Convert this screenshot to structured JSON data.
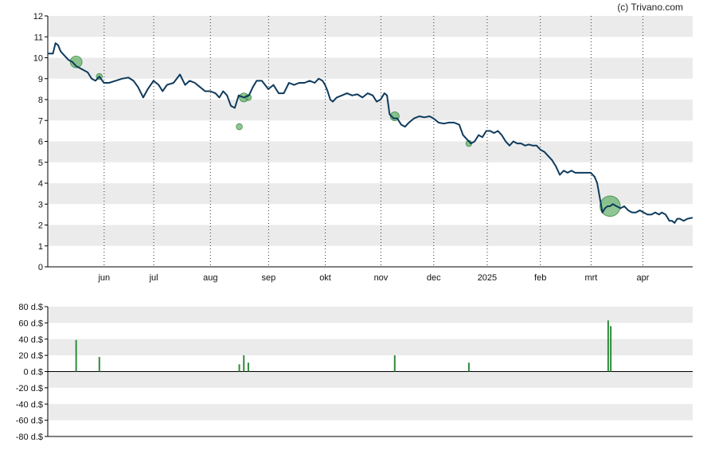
{
  "credit": "(c) Trivano.com",
  "colors": {
    "price_line": "#0e3a5c",
    "volume_bar": "#2e8b3a",
    "bubble_fill": "#5fae66",
    "band": "#ebebeb",
    "grid_dotted": "#333333",
    "axis": "#000000"
  },
  "chart_data": [
    {
      "type": "line",
      "title": "",
      "ylim": [
        0,
        12
      ],
      "y_ticks": [
        "0",
        "1",
        "2",
        "3",
        "4",
        "5",
        "6",
        "7",
        "8",
        "9",
        "10",
        "11",
        "12"
      ],
      "x_ticks": [
        {
          "label": "jun",
          "t": 0.0874
        },
        {
          "label": "jul",
          "t": 0.1643
        },
        {
          "label": "aug",
          "t": 0.2522
        },
        {
          "label": "sep",
          "t": 0.3424
        },
        {
          "label": "okt",
          "t": 0.4303
        },
        {
          "label": "nov",
          "t": 0.5166
        },
        {
          "label": "dec",
          "t": 0.5985
        },
        {
          "label": "2025",
          "t": 0.6814
        },
        {
          "label": "feb",
          "t": 0.7638
        },
        {
          "label": "mrt",
          "t": 0.8425
        },
        {
          "label": "apr",
          "t": 0.9228
        }
      ],
      "grid": "horizontal bands, dotted vertical month lines",
      "series": [
        {
          "values": [
            [
              0.0,
              10.2
            ],
            [
              0.008,
              10.2
            ],
            [
              0.012,
              10.7
            ],
            [
              0.016,
              10.6
            ],
            [
              0.02,
              10.3
            ],
            [
              0.026,
              10.1
            ],
            [
              0.032,
              9.9
            ],
            [
              0.038,
              9.8
            ],
            [
              0.044,
              9.6
            ],
            [
              0.05,
              9.5
            ],
            [
              0.056,
              9.4
            ],
            [
              0.062,
              9.3
            ],
            [
              0.068,
              9.0
            ],
            [
              0.074,
              8.9
            ],
            [
              0.08,
              9.1
            ],
            [
              0.087,
              8.8
            ],
            [
              0.095,
              8.8
            ],
            [
              0.105,
              8.9
            ],
            [
              0.115,
              9.0
            ],
            [
              0.125,
              9.05
            ],
            [
              0.133,
              8.9
            ],
            [
              0.14,
              8.6
            ],
            [
              0.148,
              8.1
            ],
            [
              0.155,
              8.5
            ],
            [
              0.164,
              8.9
            ],
            [
              0.172,
              8.7
            ],
            [
              0.178,
              8.4
            ],
            [
              0.185,
              8.7
            ],
            [
              0.195,
              8.8
            ],
            [
              0.205,
              9.2
            ],
            [
              0.213,
              8.7
            ],
            [
              0.22,
              8.9
            ],
            [
              0.228,
              8.8
            ],
            [
              0.236,
              8.6
            ],
            [
              0.244,
              8.4
            ],
            [
              0.252,
              8.4
            ],
            [
              0.26,
              8.3
            ],
            [
              0.266,
              8.1
            ],
            [
              0.272,
              8.4
            ],
            [
              0.278,
              8.2
            ],
            [
              0.284,
              7.7
            ],
            [
              0.29,
              7.6
            ],
            [
              0.296,
              8.2
            ],
            [
              0.304,
              8.1
            ],
            [
              0.312,
              8.2
            ],
            [
              0.318,
              8.6
            ],
            [
              0.324,
              8.9
            ],
            [
              0.332,
              8.9
            ],
            [
              0.342,
              8.5
            ],
            [
              0.35,
              8.7
            ],
            [
              0.358,
              8.3
            ],
            [
              0.366,
              8.3
            ],
            [
              0.374,
              8.8
            ],
            [
              0.382,
              8.7
            ],
            [
              0.39,
              8.8
            ],
            [
              0.398,
              8.8
            ],
            [
              0.406,
              8.9
            ],
            [
              0.414,
              8.8
            ],
            [
              0.42,
              9.0
            ],
            [
              0.426,
              8.9
            ],
            [
              0.43,
              8.7
            ],
            [
              0.434,
              8.4
            ],
            [
              0.438,
              8.0
            ],
            [
              0.442,
              7.9
            ],
            [
              0.448,
              8.1
            ],
            [
              0.456,
              8.2
            ],
            [
              0.464,
              8.3
            ],
            [
              0.472,
              8.2
            ],
            [
              0.48,
              8.25
            ],
            [
              0.488,
              8.1
            ],
            [
              0.496,
              8.3
            ],
            [
              0.504,
              8.2
            ],
            [
              0.51,
              7.9
            ],
            [
              0.516,
              8.0
            ],
            [
              0.522,
              8.3
            ],
            [
              0.526,
              8.2
            ],
            [
              0.53,
              7.3
            ],
            [
              0.536,
              7.1
            ],
            [
              0.542,
              7.1
            ],
            [
              0.548,
              6.8
            ],
            [
              0.554,
              6.7
            ],
            [
              0.56,
              6.9
            ],
            [
              0.568,
              7.1
            ],
            [
              0.576,
              7.2
            ],
            [
              0.584,
              7.15
            ],
            [
              0.592,
              7.2
            ],
            [
              0.598,
              7.1
            ],
            [
              0.606,
              6.9
            ],
            [
              0.614,
              6.85
            ],
            [
              0.622,
              6.9
            ],
            [
              0.63,
              6.9
            ],
            [
              0.638,
              6.8
            ],
            [
              0.644,
              6.3
            ],
            [
              0.65,
              6.1
            ],
            [
              0.656,
              5.9
            ],
            [
              0.662,
              6.0
            ],
            [
              0.668,
              6.3
            ],
            [
              0.674,
              6.2
            ],
            [
              0.68,
              6.5
            ],
            [
              0.686,
              6.5
            ],
            [
              0.692,
              6.4
            ],
            [
              0.698,
              6.5
            ],
            [
              0.704,
              6.3
            ],
            [
              0.71,
              6.0
            ],
            [
              0.716,
              5.8
            ],
            [
              0.722,
              6.0
            ],
            [
              0.728,
              5.9
            ],
            [
              0.734,
              5.9
            ],
            [
              0.74,
              5.8
            ],
            [
              0.746,
              5.85
            ],
            [
              0.752,
              5.8
            ],
            [
              0.758,
              5.8
            ],
            [
              0.764,
              5.6
            ],
            [
              0.77,
              5.5
            ],
            [
              0.776,
              5.3
            ],
            [
              0.782,
              5.1
            ],
            [
              0.788,
              4.8
            ],
            [
              0.794,
              4.4
            ],
            [
              0.8,
              4.6
            ],
            [
              0.806,
              4.5
            ],
            [
              0.812,
              4.6
            ],
            [
              0.818,
              4.5
            ],
            [
              0.824,
              4.5
            ],
            [
              0.83,
              4.5
            ],
            [
              0.836,
              4.5
            ],
            [
              0.842,
              4.5
            ],
            [
              0.848,
              4.3
            ],
            [
              0.852,
              4.0
            ],
            [
              0.856,
              3.3
            ],
            [
              0.86,
              2.6
            ],
            [
              0.864,
              2.8
            ],
            [
              0.868,
              2.9
            ],
            [
              0.872,
              2.9
            ],
            [
              0.876,
              3.0
            ],
            [
              0.882,
              2.9
            ],
            [
              0.888,
              2.8
            ],
            [
              0.894,
              2.9
            ],
            [
              0.9,
              2.7
            ],
            [
              0.906,
              2.6
            ],
            [
              0.912,
              2.6
            ],
            [
              0.918,
              2.7
            ],
            [
              0.924,
              2.6
            ],
            [
              0.93,
              2.5
            ],
            [
              0.936,
              2.5
            ],
            [
              0.942,
              2.6
            ],
            [
              0.948,
              2.5
            ],
            [
              0.952,
              2.6
            ],
            [
              0.958,
              2.5
            ],
            [
              0.964,
              2.2
            ],
            [
              0.968,
              2.2
            ],
            [
              0.972,
              2.1
            ],
            [
              0.976,
              2.3
            ],
            [
              0.98,
              2.3
            ],
            [
              0.986,
              2.2
            ],
            [
              0.992,
              2.3
            ],
            [
              1.0,
              2.35
            ]
          ]
        }
      ],
      "bubbles": [
        {
          "t": 0.044,
          "y": 9.8,
          "size": 3
        },
        {
          "t": 0.08,
          "y": 9.1,
          "size": 1
        },
        {
          "t": 0.297,
          "y": 6.7,
          "size": 1
        },
        {
          "t": 0.304,
          "y": 8.1,
          "size": 2
        },
        {
          "t": 0.311,
          "y": 8.1,
          "size": 1
        },
        {
          "t": 0.538,
          "y": 7.2,
          "size": 2
        },
        {
          "t": 0.653,
          "y": 5.9,
          "size": 1
        },
        {
          "t": 0.872,
          "y": 2.9,
          "size": 6
        }
      ]
    },
    {
      "type": "bar",
      "ylim": [
        -80,
        80
      ],
      "y_ticks": [
        "80 d.$",
        "60 d.$",
        "40 d.$",
        "20 d.$",
        "0 d.$",
        "-20 d.$",
        "-40 d.$",
        "-60 d.$",
        "-80 d.$"
      ],
      "values": [
        {
          "t": 0.044,
          "value": 39
        },
        {
          "t": 0.08,
          "value": 18
        },
        {
          "t": 0.297,
          "value": 9
        },
        {
          "t": 0.304,
          "value": 20
        },
        {
          "t": 0.311,
          "value": 11
        },
        {
          "t": 0.538,
          "value": 20
        },
        {
          "t": 0.653,
          "value": 11
        },
        {
          "t": 0.869,
          "value": 63
        },
        {
          "t": 0.873,
          "value": 56
        }
      ]
    }
  ]
}
